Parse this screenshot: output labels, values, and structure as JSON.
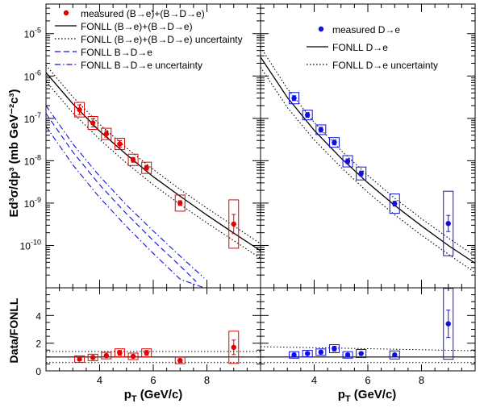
{
  "axes": {
    "y_label_top": "Ed³σ/dp³ (mb GeV⁻²c³)",
    "y_label_bottom": "Data/FONLL",
    "x_label": "p_T (GeV/c)",
    "x_label_main": "p",
    "x_label_sub": "T",
    "x_label_unit": " (GeV/c)",
    "x_ticks": [
      "4",
      "6",
      "8"
    ],
    "y_ticks_top": [
      {
        "base": "10",
        "exp": "-5"
      },
      {
        "base": "10",
        "exp": "-6"
      },
      {
        "base": "10",
        "exp": "-7"
      },
      {
        "base": "10",
        "exp": "-8"
      },
      {
        "base": "10",
        "exp": "-9"
      },
      {
        "base": "10",
        "exp": "-10"
      }
    ],
    "y_ticks_bottom": [
      "0",
      "2",
      "4"
    ]
  },
  "legend_left": [
    {
      "text": "measured (B→e)+(B→D→e)",
      "style": "marker-red"
    },
    {
      "text": "FONLL (B→e)+(B→D→e)",
      "style": "solid-black"
    },
    {
      "text": "FONLL (B→e)+(B→D→e) uncertainty",
      "style": "dotted-black"
    },
    {
      "text": "FONLL B→D→e",
      "style": "dashed-blue"
    },
    {
      "text": "FONLL B→D→e uncertainty",
      "style": "dashdot-blue"
    }
  ],
  "legend_right": [
    {
      "text": "measured D→e",
      "style": "marker-blue"
    },
    {
      "text": "FONLL D→e",
      "style": "solid-black"
    },
    {
      "text": "FONLL D→e uncertainty",
      "style": "dotted-black"
    }
  ],
  "colors": {
    "red": "#e60000",
    "blue": "#1010e0",
    "black": "#000000"
  },
  "chart_data": [
    {
      "type": "scatter",
      "panel": "top-left",
      "x_range": [
        2,
        10
      ],
      "y_range": [
        1e-11,
        5e-05
      ],
      "y_scale": "log",
      "series": [
        {
          "name": "measured (B→e)+(B→D→e)",
          "x": [
            3.25,
            3.75,
            4.25,
            4.75,
            5.25,
            5.75,
            7.0,
            9.0
          ],
          "y": [
            1.6e-07,
            7.8e-08,
            4.3e-08,
            2.5e-08,
            1.05e-08,
            6.8e-09,
            1e-09,
            3.2e-10
          ]
        },
        {
          "name": "FONLL (B→e)+(B→D→e)",
          "x": [
            2,
            3,
            4,
            5,
            6,
            7,
            8,
            9,
            10
          ],
          "y": [
            1.2e-06,
            2.2e-07,
            5e-08,
            1.4e-08,
            4.2e-09,
            1.45e-09,
            5.2e-10,
            1.95e-10,
            7.5e-11
          ]
        },
        {
          "name": "FONLL (B→e)+(B→D→e) uncertainty",
          "x": [
            2,
            3,
            4,
            5,
            6,
            7,
            8,
            9,
            10
          ],
          "y_upper": [
            1.8e-06,
            3.2e-07,
            7.2e-08,
            2e-08,
            6.2e-09,
            2.1e-09,
            7.6e-10,
            2.9e-10,
            1.1e-10
          ],
          "y_lower": [
            7.5e-07,
            1.35e-07,
            3.2e-08,
            8.8e-09,
            2.7e-09,
            9.3e-10,
            3.4e-10,
            1.3e-10,
            5e-11
          ]
        },
        {
          "name": "FONLL B→D→e",
          "x": [
            2,
            3,
            4,
            5,
            6,
            7,
            7.6
          ],
          "y": [
            1.3e-07,
            1.6e-08,
            2.7e-09,
            5.6e-10,
            1.3e-10,
            3.3e-11,
            1.4e-11
          ]
        },
        {
          "name": "FONLL B→D→e uncertainty",
          "x": [
            2,
            3,
            4,
            5,
            6,
            7,
            7.9
          ],
          "y_upper": [
            2e-07,
            2.5e-08,
            4.3e-09,
            9e-10,
            2.2e-10,
            5.6e-11,
            1.7e-11
          ],
          "y_lower": [
            6.5e-08,
            8e-09,
            1.35e-09,
            2.8e-10,
            6.5e-11,
            1.6e-11,
            1e-11
          ]
        }
      ]
    },
    {
      "type": "scatter",
      "panel": "top-right",
      "x_range": [
        2,
        10
      ],
      "y_range": [
        1e-11,
        5e-05
      ],
      "y_scale": "log",
      "series": [
        {
          "name": "measured D→e",
          "x": [
            3.25,
            3.75,
            4.25,
            4.75,
            5.25,
            5.75,
            7.0,
            9.0
          ],
          "y": [
            3e-07,
            1.2e-07,
            5.4e-08,
            2.7e-08,
            9.7e-09,
            5e-09,
            9.7e-10,
            3.3e-10
          ]
        },
        {
          "name": "FONLL D→e",
          "x": [
            2,
            3,
            4,
            5,
            6,
            7,
            8,
            9,
            10
          ],
          "y": [
            2.8e-06,
            3.1e-07,
            5.2e-08,
            1.15e-08,
            3e-09,
            8.8e-10,
            2.9e-10,
            1e-10,
            3.8e-11
          ]
        },
        {
          "name": "FONLL D→e uncertainty",
          "x": [
            2,
            3,
            4,
            5,
            6,
            7,
            8,
            9,
            10
          ],
          "y_upper": [
            4.8e-06,
            5e-07,
            8e-08,
            1.75e-08,
            4.5e-09,
            1.3e-09,
            4.3e-10,
            1.5e-10,
            5.6e-11
          ],
          "y_lower": [
            1.6e-06,
            1.8e-07,
            3.1e-08,
            7e-09,
            1.8e-09,
            5.3e-10,
            1.75e-10,
            6.2e-11,
            2.3e-11
          ]
        }
      ]
    },
    {
      "type": "scatter",
      "panel": "bottom-left",
      "x_range": [
        2,
        10
      ],
      "y_range": [
        0,
        6
      ],
      "series": [
        {
          "name": "Data/FONLL (B→e)+(B→D→e)",
          "x": [
            3.25,
            3.75,
            4.25,
            4.75,
            5.25,
            5.75,
            7.0,
            9.0
          ],
          "y": [
            0.85,
            0.97,
            1.1,
            1.3,
            1.05,
            1.3,
            0.75,
            1.7
          ]
        },
        {
          "name": "uncertainty band",
          "y_upper": 1.4,
          "y_lower": 0.6
        }
      ]
    },
    {
      "type": "scatter",
      "panel": "bottom-right",
      "x_range": [
        2,
        10
      ],
      "y_range": [
        0,
        6
      ],
      "series": [
        {
          "name": "Data/FONLL D→e",
          "x": [
            3.25,
            3.75,
            4.25,
            4.75,
            5.25,
            5.75,
            7.0,
            9.0
          ],
          "y": [
            1.15,
            1.25,
            1.35,
            1.6,
            1.15,
            1.25,
            1.15,
            3.4
          ]
        },
        {
          "name": "uncertainty band",
          "y_upper_start": 1.75,
          "y_upper_end": 1.45,
          "y_lower": 0.6
        }
      ]
    }
  ]
}
